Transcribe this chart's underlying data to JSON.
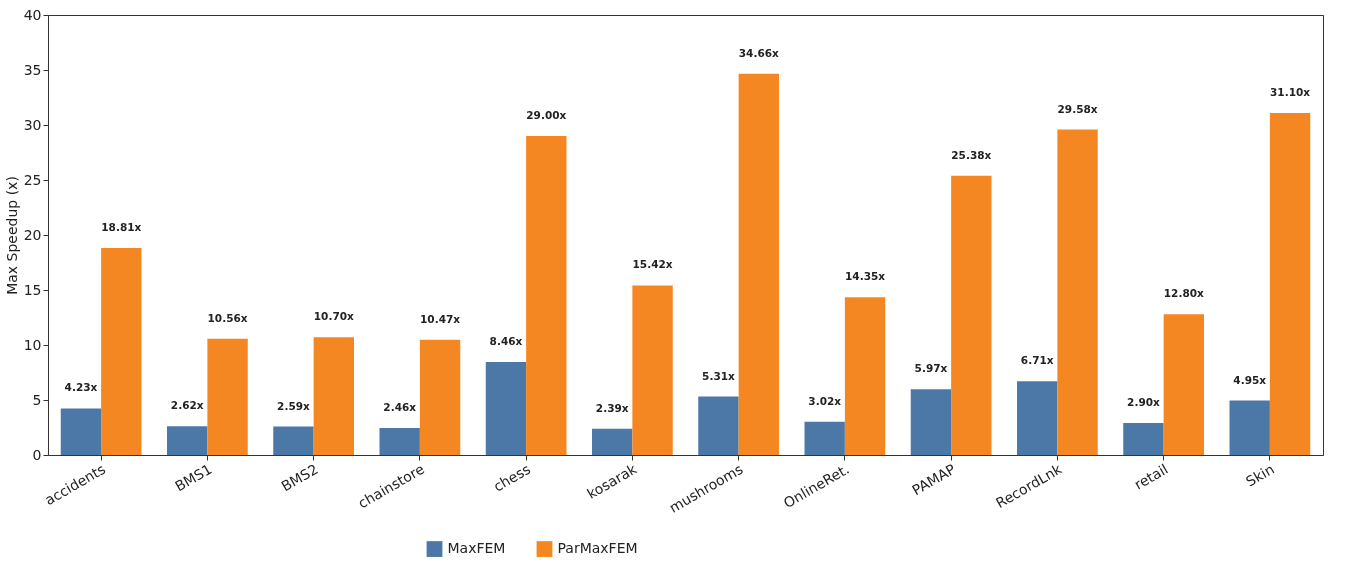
{
  "chart_data": {
    "type": "bar",
    "ylabel": "Max Speedup (x)",
    "categories": [
      "accidents",
      "BMS1",
      "BMS2",
      "chainstore",
      "chess",
      "kosarak",
      "mushrooms",
      "OnlineRet.",
      "PAMAP",
      "RecordLnk",
      "retail",
      "Skin"
    ],
    "series": [
      {
        "name": "MaxFEM",
        "color": "#4c78a8",
        "values": [
          4.23,
          2.62,
          2.59,
          2.46,
          8.46,
          2.39,
          5.31,
          3.02,
          5.97,
          6.71,
          2.9,
          4.95
        ],
        "value_labels": [
          "4.23x",
          "2.62x",
          "2.59x",
          "2.46x",
          "8.46x",
          "2.39x",
          "5.31x",
          "3.02x",
          "5.97x",
          "6.71x",
          "2.90x",
          "4.95x"
        ]
      },
      {
        "name": "ParMaxFEM",
        "color": "#f58722",
        "values": [
          18.81,
          10.56,
          10.7,
          10.47,
          29.0,
          15.42,
          34.66,
          14.35,
          25.38,
          29.58,
          12.8,
          31.1
        ],
        "value_labels": [
          "18.81x",
          "10.56x",
          "10.70x",
          "10.47x",
          "29.00x",
          "15.42x",
          "34.66x",
          "14.35x",
          "25.38x",
          "29.58x",
          "12.80x",
          "31.10x"
        ]
      }
    ],
    "ylim": [
      0,
      40
    ],
    "yticks": [
      0,
      5,
      10,
      15,
      20,
      25,
      30,
      35,
      40
    ],
    "legend": "bottom",
    "grid": false
  }
}
